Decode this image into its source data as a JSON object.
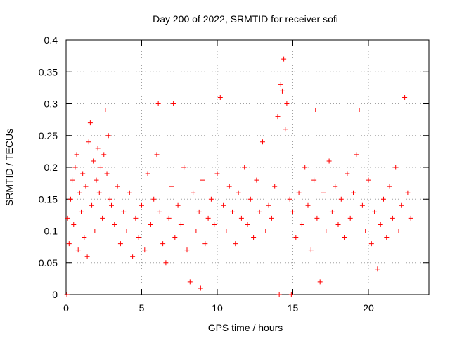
{
  "chart_data": {
    "type": "scatter",
    "title": "Day 200 of 2022, SRMTID for receiver sofi",
    "xlabel": "GPS time / hours",
    "ylabel": "SRMTID / TECUs",
    "xlim": [
      0,
      24
    ],
    "ylim": [
      0,
      0.4
    ],
    "xticks": [
      "0",
      "5",
      "10",
      "15",
      "20"
    ],
    "yticks": [
      "0",
      "0.05",
      "0.1",
      "0.15",
      "0.2",
      "0.25",
      "0.3",
      "0.35",
      "0.4"
    ],
    "grid": true,
    "marker": "+",
    "series_color": "#ff0000",
    "series": [
      {
        "points": [
          [
            0.05,
            0.0
          ],
          [
            14.1,
            0.0
          ],
          [
            14.9,
            0.0
          ],
          [
            0.1,
            0.12
          ],
          [
            0.2,
            0.08
          ],
          [
            0.3,
            0.15
          ],
          [
            0.4,
            0.18
          ],
          [
            0.5,
            0.11
          ],
          [
            0.6,
            0.2
          ],
          [
            0.7,
            0.22
          ],
          [
            0.8,
            0.07
          ],
          [
            0.9,
            0.16
          ],
          [
            1.0,
            0.13
          ],
          [
            1.1,
            0.19
          ],
          [
            1.2,
            0.09
          ],
          [
            1.3,
            0.17
          ],
          [
            1.4,
            0.06
          ],
          [
            1.5,
            0.24
          ],
          [
            1.6,
            0.27
          ],
          [
            1.7,
            0.14
          ],
          [
            1.8,
            0.21
          ],
          [
            1.9,
            0.1
          ],
          [
            2.0,
            0.18
          ],
          [
            2.1,
            0.23
          ],
          [
            2.2,
            0.16
          ],
          [
            2.3,
            0.2
          ],
          [
            2.4,
            0.12
          ],
          [
            2.5,
            0.22
          ],
          [
            2.6,
            0.29
          ],
          [
            2.7,
            0.19
          ],
          [
            2.8,
            0.25
          ],
          [
            2.9,
            0.15
          ],
          [
            3.0,
            0.14
          ],
          [
            3.2,
            0.11
          ],
          [
            3.4,
            0.17
          ],
          [
            3.6,
            0.08
          ],
          [
            3.8,
            0.13
          ],
          [
            4.0,
            0.1
          ],
          [
            4.2,
            0.16
          ],
          [
            4.4,
            0.06
          ],
          [
            4.6,
            0.12
          ],
          [
            4.8,
            0.09
          ],
          [
            5.0,
            0.14
          ],
          [
            5.2,
            0.07
          ],
          [
            5.4,
            0.19
          ],
          [
            5.6,
            0.11
          ],
          [
            5.8,
            0.15
          ],
          [
            6.0,
            0.22
          ],
          [
            6.1,
            0.3
          ],
          [
            6.2,
            0.13
          ],
          [
            6.4,
            0.08
          ],
          [
            6.6,
            0.05
          ],
          [
            6.8,
            0.12
          ],
          [
            7.0,
            0.17
          ],
          [
            7.1,
            0.3
          ],
          [
            7.2,
            0.09
          ],
          [
            7.4,
            0.14
          ],
          [
            7.6,
            0.11
          ],
          [
            7.8,
            0.2
          ],
          [
            8.0,
            0.07
          ],
          [
            8.2,
            0.02
          ],
          [
            8.4,
            0.16
          ],
          [
            8.6,
            0.1
          ],
          [
            8.8,
            0.13
          ],
          [
            8.9,
            0.01
          ],
          [
            9.0,
            0.18
          ],
          [
            9.2,
            0.08
          ],
          [
            9.4,
            0.12
          ],
          [
            9.6,
            0.15
          ],
          [
            9.8,
            0.11
          ],
          [
            10.0,
            0.19
          ],
          [
            10.2,
            0.31
          ],
          [
            10.4,
            0.14
          ],
          [
            10.6,
            0.1
          ],
          [
            10.8,
            0.17
          ],
          [
            11.0,
            0.13
          ],
          [
            11.2,
            0.08
          ],
          [
            11.4,
            0.16
          ],
          [
            11.6,
            0.12
          ],
          [
            11.8,
            0.2
          ],
          [
            12.0,
            0.11
          ],
          [
            12.2,
            0.15
          ],
          [
            12.4,
            0.09
          ],
          [
            12.6,
            0.18
          ],
          [
            12.8,
            0.13
          ],
          [
            13.0,
            0.24
          ],
          [
            13.2,
            0.1
          ],
          [
            13.4,
            0.14
          ],
          [
            13.6,
            0.12
          ],
          [
            13.8,
            0.17
          ],
          [
            14.0,
            0.28
          ],
          [
            14.2,
            0.33
          ],
          [
            14.3,
            0.32
          ],
          [
            14.4,
            0.37
          ],
          [
            14.5,
            0.26
          ],
          [
            14.6,
            0.3
          ],
          [
            14.8,
            0.15
          ],
          [
            15.0,
            0.13
          ],
          [
            15.2,
            0.09
          ],
          [
            15.4,
            0.16
          ],
          [
            15.6,
            0.11
          ],
          [
            15.8,
            0.2
          ],
          [
            16.0,
            0.14
          ],
          [
            16.2,
            0.07
          ],
          [
            16.4,
            0.18
          ],
          [
            16.5,
            0.29
          ],
          [
            16.6,
            0.12
          ],
          [
            16.8,
            0.02
          ],
          [
            17.0,
            0.16
          ],
          [
            17.2,
            0.1
          ],
          [
            17.4,
            0.21
          ],
          [
            17.6,
            0.13
          ],
          [
            17.8,
            0.17
          ],
          [
            18.0,
            0.11
          ],
          [
            18.2,
            0.15
          ],
          [
            18.4,
            0.09
          ],
          [
            18.6,
            0.19
          ],
          [
            18.8,
            0.12
          ],
          [
            19.0,
            0.16
          ],
          [
            19.2,
            0.22
          ],
          [
            19.4,
            0.29
          ],
          [
            19.6,
            0.14
          ],
          [
            19.8,
            0.1
          ],
          [
            20.0,
            0.18
          ],
          [
            20.2,
            0.08
          ],
          [
            20.4,
            0.13
          ],
          [
            20.6,
            0.04
          ],
          [
            20.8,
            0.11
          ],
          [
            21.0,
            0.15
          ],
          [
            21.2,
            0.09
          ],
          [
            21.4,
            0.17
          ],
          [
            21.6,
            0.12
          ],
          [
            21.8,
            0.2
          ],
          [
            22.0,
            0.1
          ],
          [
            22.2,
            0.14
          ],
          [
            22.4,
            0.31
          ],
          [
            22.6,
            0.16
          ],
          [
            22.8,
            0.12
          ]
        ]
      }
    ]
  }
}
